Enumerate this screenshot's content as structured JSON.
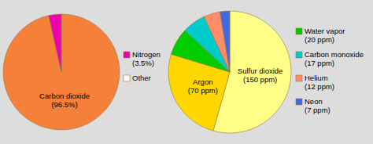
{
  "chart_data": [
    {
      "type": "pie",
      "categories": [
        "Carbon dioxide",
        "Nitrogen",
        "Other"
      ],
      "values": [
        96.5,
        3.5,
        0.003
      ],
      "value_labels": [
        "(96.5%)",
        "(3.5%)",
        null
      ],
      "colors": [
        "#F4803A",
        "#EE00AA",
        "#FFFFFF"
      ]
    },
    {
      "type": "pie",
      "categories": [
        "Sulfur dioxide",
        "Argon",
        "Water vapor",
        "Carbon monoxide",
        "Helium",
        "Neon"
      ],
      "values": [
        150,
        70,
        20,
        17,
        12,
        7
      ],
      "value_labels": [
        "(150 ppm)",
        "(70 ppm)",
        "(20 ppm)",
        "(17 ppm)",
        "(12 ppm)",
        "(7 ppm)"
      ],
      "colors": [
        "#FFFF88",
        "#FFD700",
        "#00CC00",
        "#00CCCC",
        "#FF8C69",
        "#4169E1"
      ]
    }
  ]
}
